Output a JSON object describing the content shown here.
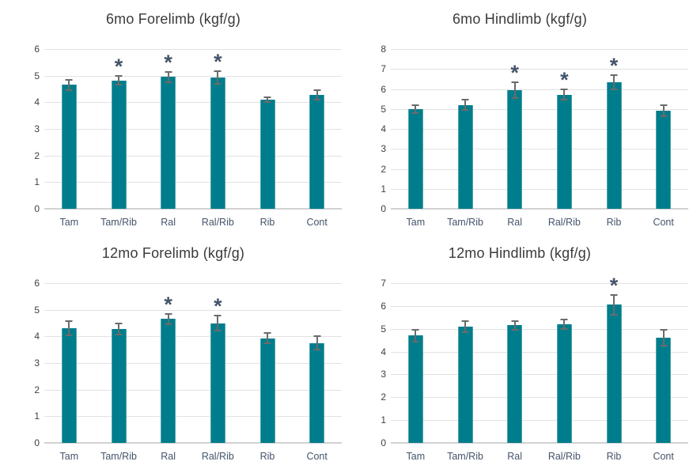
{
  "colors": {
    "bar": "#007d8c",
    "bar_edge": "#4aa3ac",
    "error_bar": "#6b6b6b",
    "asterisk": "#44546a",
    "x_label": "#44546a",
    "y_label": "#404040",
    "title": "#3b3b3b",
    "gridline": "#e2e2e2",
    "baseline": "#d2d2d2",
    "background": "#ffffff"
  },
  "annotations": {
    "significance_marker": "*"
  },
  "chart_data": [
    {
      "type": "bar",
      "title": "6mo Forelimb (kgf/g)",
      "xlabel": "",
      "ylabel": "",
      "categories": [
        "Tam",
        "Tam/Rib",
        "Ral",
        "Ral/Rib",
        "Rib",
        "Cont"
      ],
      "values": [
        4.65,
        4.82,
        4.95,
        4.93,
        4.1,
        4.28
      ],
      "errors": [
        0.18,
        0.17,
        0.2,
        0.23,
        0.1,
        0.17
      ],
      "significant": [
        false,
        true,
        true,
        true,
        false,
        false
      ],
      "ylim": [
        0,
        6
      ],
      "ytick_step": 1,
      "grid": true,
      "legend": false
    },
    {
      "type": "bar",
      "title": "6mo Hindlimb (kgf/g)",
      "xlabel": "",
      "ylabel": "",
      "categories": [
        "Tam",
        "Tam/Rib",
        "Ral",
        "Ral/Rib",
        "Rib",
        "Cont"
      ],
      "values": [
        5.0,
        5.2,
        5.95,
        5.72,
        6.35,
        4.9
      ],
      "errors": [
        0.2,
        0.25,
        0.4,
        0.27,
        0.35,
        0.27
      ],
      "significant": [
        false,
        false,
        true,
        true,
        true,
        false
      ],
      "ylim": [
        0,
        8
      ],
      "ytick_step": 1,
      "grid": true,
      "legend": false
    },
    {
      "type": "bar",
      "title": "12mo Forelimb (kgf/g)",
      "xlabel": "",
      "ylabel": "",
      "categories": [
        "Tam",
        "Tam/Rib",
        "Ral",
        "Ral/Rib",
        "Rib",
        "Cont"
      ],
      "values": [
        4.3,
        4.28,
        4.65,
        4.5,
        3.93,
        3.75
      ],
      "errors": [
        0.27,
        0.2,
        0.2,
        0.27,
        0.2,
        0.25
      ],
      "significant": [
        false,
        false,
        true,
        true,
        false,
        false
      ],
      "ylim": [
        0,
        6
      ],
      "ytick_step": 1,
      "grid": true,
      "legend": false
    },
    {
      "type": "bar",
      "title": "12mo Hindlimb (kgf/g)",
      "xlabel": "",
      "ylabel": "",
      "categories": [
        "Tam",
        "Tam/Rib",
        "Ral",
        "Ral/Rib",
        "Rib",
        "Cont"
      ],
      "values": [
        4.7,
        5.1,
        5.15,
        5.2,
        6.05,
        4.6
      ],
      "errors": [
        0.25,
        0.25,
        0.2,
        0.2,
        0.42,
        0.35
      ],
      "significant": [
        false,
        false,
        false,
        false,
        true,
        false
      ],
      "ylim": [
        0,
        7
      ],
      "ytick_step": 1,
      "grid": true,
      "legend": false
    }
  ]
}
